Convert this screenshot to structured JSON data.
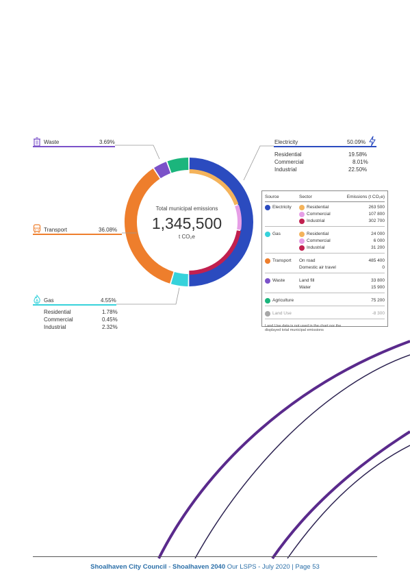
{
  "chart_data": {
    "type": "donut",
    "title": "Total municipal emissions",
    "total_value": "1,345,500",
    "total_unit": "t CO₂e",
    "segments": [
      {
        "name": "Electricity",
        "percent": 50.09,
        "color": "#2b4bbf"
      },
      {
        "name": "Gas",
        "percent": 4.55,
        "color": "#36d2db"
      },
      {
        "name": "Transport",
        "percent": 36.08,
        "color": "#ee7e2c"
      },
      {
        "name": "Waste",
        "percent": 3.69,
        "color": "#7b52c9"
      },
      {
        "name": "Agriculture",
        "percent": 5.59,
        "color": "#1bb57c"
      }
    ],
    "inner_segments": [
      {
        "name": "Residential",
        "percent": 19.58,
        "color": "#f4b35b"
      },
      {
        "name": "Commercial",
        "percent": 8.01,
        "color": "#e69ee6"
      },
      {
        "name": "Industrial",
        "percent": 22.5,
        "color": "#c1204f"
      }
    ]
  },
  "callouts": {
    "waste": {
      "label": "Waste",
      "pct": "3.69%"
    },
    "transport": {
      "label": "Transport",
      "pct": "36.08%"
    },
    "gas": {
      "label": "Gas",
      "pct": "4.55%",
      "items": [
        {
          "label": "Residential",
          "pct": "1.78%"
        },
        {
          "label": "Commercial",
          "pct": "0.45%"
        },
        {
          "label": "Industrial",
          "pct": "2.32%"
        }
      ]
    },
    "electricity": {
      "label": "Electricity",
      "pct": "50.09%",
      "items": [
        {
          "label": "Residential",
          "pct": "19.58%"
        },
        {
          "label": "Commercial",
          "pct": "8.01%"
        },
        {
          "label": "Industrial",
          "pct": "22.50%"
        }
      ]
    }
  },
  "legend": {
    "headers": {
      "source": "Source",
      "sector": "Sector",
      "emissions": "Emissions (t CO₂e)"
    },
    "groups": [
      {
        "source": "Electricity",
        "color": "#2b4bbf",
        "rows": [
          {
            "sector": "Residential",
            "color": "#f4b35b",
            "value": "263 500"
          },
          {
            "sector": "Commercial",
            "color": "#e69ee6",
            "value": "107 800"
          },
          {
            "sector": "Industrial",
            "color": "#c1204f",
            "value": "302 700"
          }
        ]
      },
      {
        "source": "Gas",
        "color": "#36d2db",
        "rows": [
          {
            "sector": "Residential",
            "color": "#f4b35b",
            "value": "24 000"
          },
          {
            "sector": "Commercial",
            "color": "#e69ee6",
            "value": "6 000"
          },
          {
            "sector": "Industrial",
            "color": "#c1204f",
            "value": "31 200"
          }
        ]
      },
      {
        "source": "Transport",
        "color": "#ee7e2c",
        "rows": [
          {
            "sector": "On road",
            "value": "485 400"
          },
          {
            "sector": "Domestic air travel",
            "value": "0"
          }
        ]
      },
      {
        "source": "Waste",
        "color": "#7b52c9",
        "rows": [
          {
            "sector": "Land fill",
            "value": "33 800"
          },
          {
            "sector": "Water",
            "value": "15 900"
          }
        ]
      },
      {
        "source": "Agriculture",
        "color": "#1bb57c",
        "rows": [
          {
            "sector": "",
            "value": "75 200"
          }
        ]
      },
      {
        "source": "Land Use",
        "color": "#a7a7a7",
        "muted": true,
        "rows": [
          {
            "sector": "",
            "value": "-8 300"
          }
        ]
      }
    ],
    "note": "Land Use data is not used in the chart nor the displayed total municipal emissions"
  },
  "footer": {
    "org": "Shoalhaven City Council",
    "sep1": " - ",
    "plan": "Shoalhaven 2040",
    "doc": " Our LSPS - July 2020 ",
    "page": "| Page 53"
  }
}
